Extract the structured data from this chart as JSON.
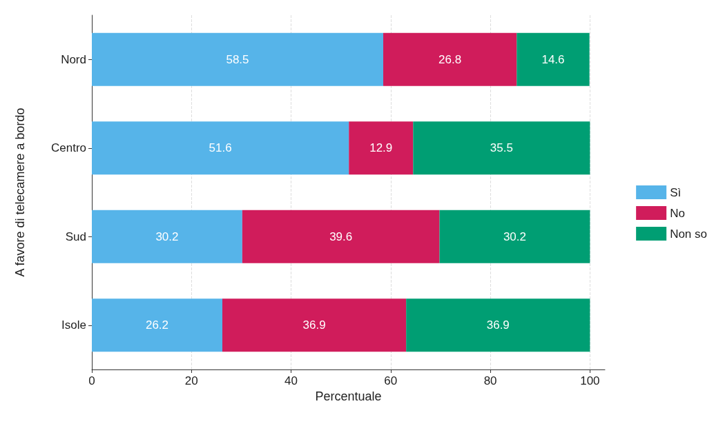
{
  "chart_data": {
    "type": "bar",
    "orientation": "horizontal",
    "stacked": true,
    "xlabel": "Percentuale",
    "ylabel": "A favore di telecamere a bordo",
    "categories": [
      "Nord",
      "Centro",
      "Sud",
      "Isole"
    ],
    "series": [
      {
        "name": "Sì",
        "color": "#56b4e9",
        "values": [
          58.5,
          51.6,
          30.2,
          26.2
        ]
      },
      {
        "name": "No",
        "color": "#d01c5b",
        "values": [
          26.8,
          12.9,
          39.6,
          36.9
        ]
      },
      {
        "name": "Non so",
        "color": "#009e73",
        "values": [
          14.6,
          35.5,
          30.2,
          36.9
        ]
      }
    ],
    "xlim": [
      0,
      103
    ],
    "xticks": [
      0,
      20,
      40,
      60,
      80,
      100
    ],
    "grid": "x",
    "legend": "right",
    "data_labels": true
  }
}
